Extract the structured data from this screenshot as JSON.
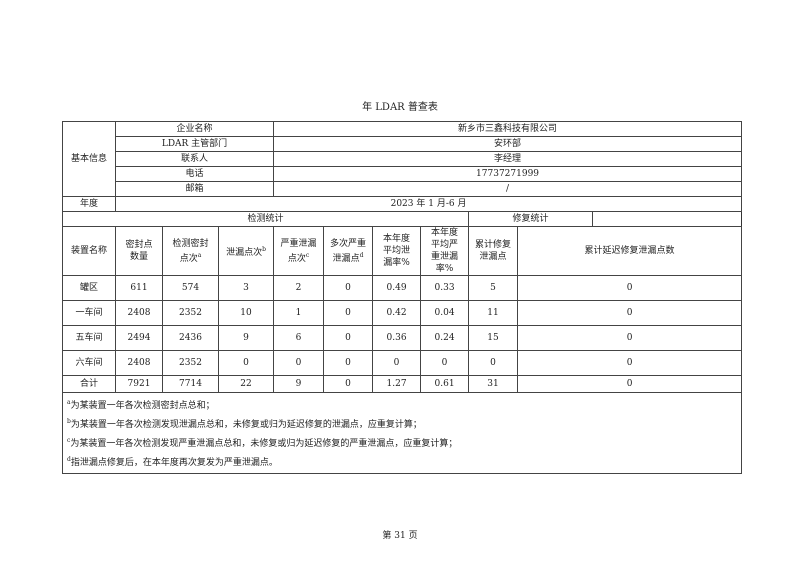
{
  "title": "年 LDAR 普查表",
  "basic_info": {
    "label": "基本信息",
    "rows": [
      {
        "key": "企业名称",
        "value": "新乡市三鑫科技有限公司"
      },
      {
        "key": "LDAR 主管部门",
        "value": "安环部"
      },
      {
        "key": "联系人",
        "value": "李经理"
      },
      {
        "key": "电话",
        "value": "17737271999"
      },
      {
        "key": "邮箱",
        "value": "/"
      }
    ]
  },
  "year": {
    "label": "年度",
    "value": "2023 年 1 月-6 月"
  },
  "sections": {
    "detection": "检测统计",
    "repair": "修复统计"
  },
  "headers": [
    {
      "text": "装置名称",
      "sup": ""
    },
    {
      "text": "密封点数量",
      "sup": ""
    },
    {
      "text": "检测密封点次",
      "sup": "a"
    },
    {
      "text": "泄漏点次",
      "sup": "b"
    },
    {
      "text": "严重泄漏点次",
      "sup": "c"
    },
    {
      "text": "多次严重泄漏点",
      "sup": "d"
    },
    {
      "text": "本年度平均泄漏率%",
      "sup": ""
    },
    {
      "text": "本年度平均严重泄漏率%",
      "sup": ""
    },
    {
      "text": "累计修复泄漏点",
      "sup": ""
    },
    {
      "text": "累计延迟修复泄漏点数",
      "sup": ""
    }
  ],
  "rows": [
    [
      "罐区",
      "611",
      "574",
      "3",
      "2",
      "0",
      "0.49",
      "0.33",
      "5",
      "0"
    ],
    [
      "一车间",
      "2408",
      "2352",
      "10",
      "1",
      "0",
      "0.42",
      "0.04",
      "11",
      "0"
    ],
    [
      "五车间",
      "2494",
      "2436",
      "9",
      "6",
      "0",
      "0.36",
      "0.24",
      "15",
      "0"
    ],
    [
      "六车间",
      "2408",
      "2352",
      "0",
      "0",
      "0",
      "0",
      "0",
      "0",
      "0"
    ]
  ],
  "total": [
    "合计",
    "7921",
    "7714",
    "22",
    "9",
    "0",
    "1.27",
    "0.61",
    "31",
    "0"
  ],
  "footnotes": [
    {
      "sup": "a",
      "text": "为某装置一年各次检测密封点总和；"
    },
    {
      "sup": "b",
      "text": "为某装置一年各次检测发现泄漏点总和，未修复或归为延迟修复的泄漏点，应重复计算；"
    },
    {
      "sup": "c",
      "text": "为某装置一年各次检测发现严重泄漏点总和，未修复或归为延迟修复的严重泄漏点，应重复计算；"
    },
    {
      "sup": "d",
      "text": "指泄漏点修复后，在本年度再次复发为严重泄漏点。"
    }
  ],
  "page_number": "第 31 页"
}
